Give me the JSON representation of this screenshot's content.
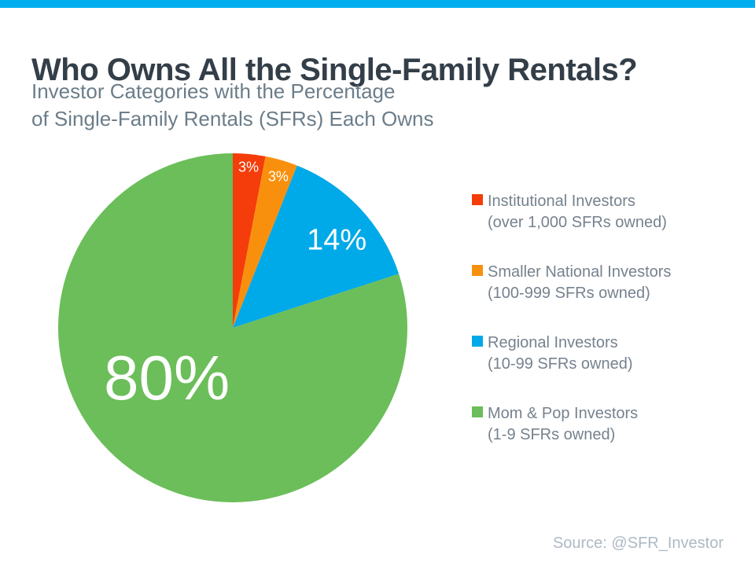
{
  "page": {
    "title": "Who Owns All the Single-Family Rentals?",
    "subtitle_line1": "Investor Categories with the Percentage",
    "subtitle_line2": "of Single-Family Rentals (SFRs) Each Owns",
    "source": "Source: @SFR_Investor"
  },
  "colors": {
    "accent_bar": "#00AEEF",
    "title_text": "#333E48",
    "subtitle_text": "#6B7D89",
    "legend_text": "#76828E",
    "source_text": "#AEB9C4",
    "pie_label_text": "#FFFFFF"
  },
  "chart_data": {
    "type": "pie",
    "title": "Who Owns All the Single-Family Rentals?",
    "subtitle": "Investor Categories with the Percentage of Single-Family Rentals (SFRs) Each Owns",
    "units": "percent of single-family rentals owned",
    "start_angle_deg": 0,
    "direction": "clockwise",
    "legend_position": "right",
    "source": "Source: @SFR_Investor",
    "slices": [
      {
        "label": "Institutional Investors (over 1,000 SFRs owned)",
        "value": 3,
        "display": "3%",
        "color": "#F43D0A"
      },
      {
        "label": "Smaller National Investors (100-999 SFRs owned)",
        "value": 3,
        "display": "3%",
        "color": "#F9900D"
      },
      {
        "label": "Regional Investors (10-99 SFRs owned)",
        "value": 14,
        "display": "14%",
        "color": "#00A9E8"
      },
      {
        "label": "Mom & Pop Investors (1-9 SFRs owned)",
        "value": 80,
        "display": "80%",
        "color": "#6BBE59"
      }
    ],
    "layout": {
      "label_positions": [
        {
          "fx": 0.09,
          "fy": -0.923,
          "size": 18
        },
        {
          "fx": 0.261,
          "fy": -0.869,
          "size": 18
        },
        {
          "fx": 0.595,
          "fy": -0.509,
          "size": 38
        },
        {
          "fx": -0.378,
          "fy": 0.284,
          "size": 80
        }
      ]
    }
  },
  "legend": {
    "items": [
      {
        "name": "Institutional Investors",
        "range": "(over 1,000 SFRs owned)",
        "color": "#F43D0A"
      },
      {
        "name": "Smaller National Investors",
        "range": "(100-999 SFRs owned)",
        "color": "#F9900D"
      },
      {
        "name": "Regional Investors",
        "range": "(10-99 SFRs owned)",
        "color": "#00A9E8"
      },
      {
        "name": "Mom & Pop Investors",
        "range": "(1-9 SFRs owned)",
        "color": "#6BBE59"
      }
    ]
  }
}
